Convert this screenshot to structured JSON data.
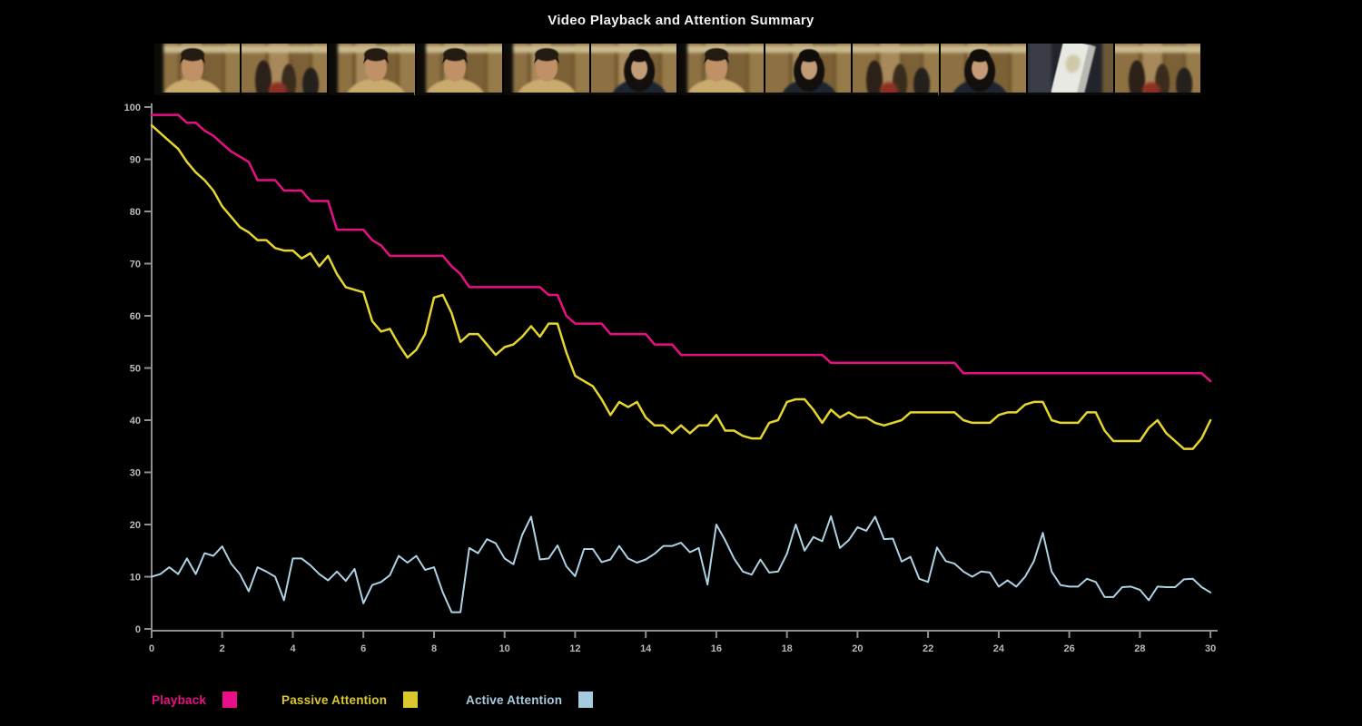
{
  "title": "Video Playback and Attention Summary",
  "filmstrip": {
    "frames": [
      {
        "scene": "man-a"
      },
      {
        "scene": "store"
      },
      {
        "scene": "man-b"
      },
      {
        "scene": "man-a"
      },
      {
        "scene": "man-c"
      },
      {
        "scene": "woman-a"
      },
      {
        "scene": "man-b"
      },
      {
        "scene": "woman-b"
      },
      {
        "scene": "store-people"
      },
      {
        "scene": "woman-a"
      },
      {
        "scene": "phone"
      },
      {
        "scene": "store-people"
      }
    ]
  },
  "legend": [
    {
      "label": "Playback",
      "color": "#ea0f86"
    },
    {
      "label": "Passive Attention",
      "color": "#d9c92c"
    },
    {
      "label": "Active Attention",
      "color": "#a5cbdf"
    }
  ],
  "chart_data": {
    "type": "line",
    "title": "Video Playback and Attention Summary",
    "xlabel": "",
    "ylabel": "",
    "xlim": [
      0,
      30
    ],
    "ylim": [
      0,
      100
    ],
    "grid": false,
    "legend_position": "bottom",
    "axis_color": "#8f8f8f",
    "tick_label_color": "#b9b9c0",
    "x_ticks": [
      0,
      2,
      4,
      6,
      8,
      10,
      12,
      14,
      16,
      18,
      20,
      22,
      24,
      26,
      28,
      30
    ],
    "y_ticks": [
      0,
      10,
      20,
      30,
      40,
      50,
      60,
      70,
      80,
      90,
      100
    ],
    "x": [
      0,
      0.25,
      0.5,
      0.75,
      1,
      1.25,
      1.5,
      1.75,
      2,
      2.25,
      2.5,
      2.75,
      3,
      3.25,
      3.5,
      3.75,
      4,
      4.25,
      4.5,
      4.75,
      5,
      5.25,
      5.5,
      5.75,
      6,
      6.25,
      6.5,
      6.75,
      7,
      7.25,
      7.5,
      7.75,
      8,
      8.25,
      8.5,
      8.75,
      9,
      9.25,
      9.5,
      9.75,
      10,
      10.25,
      10.5,
      10.75,
      11,
      11.25,
      11.5,
      11.75,
      12,
      12.25,
      12.5,
      12.75,
      13,
      13.25,
      13.5,
      13.75,
      14,
      14.25,
      14.5,
      14.75,
      15,
      15.25,
      15.5,
      15.75,
      16,
      16.25,
      16.5,
      16.75,
      17,
      17.25,
      17.5,
      17.75,
      18,
      18.25,
      18.5,
      18.75,
      19,
      19.25,
      19.5,
      19.75,
      20,
      20.25,
      20.5,
      20.75,
      21,
      21.25,
      21.5,
      21.75,
      22,
      22.25,
      22.5,
      22.75,
      23,
      23.25,
      23.5,
      23.75,
      24,
      24.25,
      24.5,
      24.75,
      25,
      25.25,
      25.5,
      25.75,
      26,
      26.25,
      26.5,
      26.75,
      27,
      27.25,
      27.5,
      27.75,
      28,
      28.25,
      28.5,
      28.75,
      29,
      29.25,
      29.5,
      29.75,
      30
    ],
    "series": [
      {
        "name": "Playback",
        "color": "#e80f84",
        "values": [
          98.5,
          98.5,
          98.5,
          98.5,
          97,
          97,
          95.5,
          94.5,
          93,
          91.5,
          90.5,
          89.5,
          86,
          86,
          86,
          84,
          84,
          84,
          82,
          82,
          82,
          76.5,
          76.5,
          76.5,
          76.5,
          74.5,
          73.5,
          71.5,
          71.5,
          71.5,
          71.5,
          71.5,
          71.5,
          71.5,
          69.5,
          68,
          65.5,
          65.5,
          65.5,
          65.5,
          65.5,
          65.5,
          65.5,
          65.5,
          65.5,
          64,
          64,
          60,
          58.5,
          58.5,
          58.5,
          58.5,
          56.5,
          56.5,
          56.5,
          56.5,
          56.5,
          54.5,
          54.5,
          54.5,
          52.5,
          52.5,
          52.5,
          52.5,
          52.5,
          52.5,
          52.5,
          52.5,
          52.5,
          52.5,
          52.5,
          52.5,
          52.5,
          52.5,
          52.5,
          52.5,
          52.5,
          51,
          51,
          51,
          51,
          51,
          51,
          51,
          51,
          51,
          51,
          51,
          51,
          51,
          51,
          51,
          49,
          49,
          49,
          49,
          49,
          49,
          49,
          49,
          49,
          49,
          49,
          49,
          49,
          49,
          49,
          49,
          49,
          49,
          49,
          49,
          49,
          49,
          49,
          49,
          49,
          49,
          49,
          49,
          47.5
        ]
      },
      {
        "name": "Passive Attention",
        "color": "#e5d52e",
        "values": [
          96.5,
          95,
          93.5,
          92,
          89.5,
          87.5,
          86,
          84,
          81,
          79,
          77,
          76,
          74.5,
          74.5,
          73,
          72.5,
          72.5,
          71,
          72,
          69.5,
          71.5,
          68,
          65.5,
          65,
          64.5,
          59,
          57,
          57.5,
          54.5,
          52,
          53.5,
          56.5,
          63.5,
          64,
          60.5,
          55,
          56.5,
          56.5,
          54.5,
          52.5,
          54,
          54.5,
          56,
          58,
          56,
          58.5,
          58.5,
          53,
          48.5,
          47.5,
          46.5,
          44,
          41,
          43.5,
          42.5,
          43.5,
          40.5,
          39,
          39,
          37.5,
          39,
          37.5,
          39,
          39,
          41,
          38,
          38,
          37,
          36.5,
          36.5,
          39.5,
          40,
          43.5,
          44,
          44,
          42,
          39.5,
          42,
          40.5,
          41.5,
          40.5,
          40.5,
          39.5,
          39,
          39.5,
          40,
          41.5,
          41.5,
          41.5,
          41.5,
          41.5,
          41.5,
          40,
          39.5,
          39.5,
          39.5,
          41,
          41.5,
          41.5,
          43,
          43.5,
          43.5,
          40,
          39.5,
          39.5,
          39.5,
          41.5,
          41.5,
          38,
          36,
          36,
          36,
          36,
          38.5,
          40,
          37.5,
          36,
          34.5,
          34.5,
          36.5,
          40
        ]
      },
      {
        "name": "Active Attention",
        "color": "#aed2e4",
        "values": [
          10,
          10.5,
          11.8,
          10.5,
          13.5,
          10.5,
          14.5,
          14,
          15.8,
          12.5,
          10.5,
          7.2,
          11.8,
          11,
          10,
          5.5,
          13.5,
          13.5,
          12.2,
          10.5,
          9.3,
          11,
          9.2,
          11.5,
          4.9,
          8.4,
          9,
          10.3,
          14,
          12.7,
          14,
          11.3,
          11.8,
          7,
          3.2,
          3.2,
          15.5,
          14.5,
          17.2,
          16.4,
          13.5,
          12.4,
          18,
          21.5,
          13.3,
          13.5,
          16,
          12,
          10.1,
          15.3,
          15.3,
          12.8,
          13.3,
          15.9,
          13.5,
          12.7,
          13.3,
          14.4,
          15.9,
          15.9,
          16.5,
          14.7,
          15.5,
          8.5,
          20,
          17,
          13.5,
          11,
          10.4,
          13.3,
          10.8,
          11,
          14.4,
          20,
          15,
          17.6,
          16.8,
          21.6,
          15.5,
          17,
          19.5,
          18.8,
          21.5,
          17.2,
          17.3,
          12.9,
          13.8,
          9.6,
          9,
          15.6,
          13,
          12.5,
          11,
          10,
          11,
          10.8,
          8.1,
          9.3,
          8.1,
          10,
          13,
          18.4,
          11,
          8.4,
          8.1,
          8.1,
          9.6,
          9,
          6.1,
          6.1,
          8,
          8.1,
          7.5,
          5.5,
          8.1,
          8,
          8,
          9.5,
          9.6,
          8,
          7
        ]
      }
    ]
  }
}
